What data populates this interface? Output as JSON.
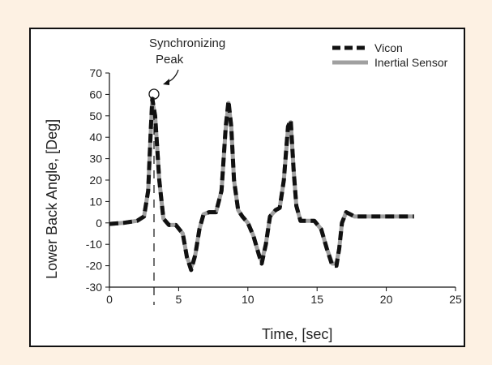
{
  "chart_data": {
    "type": "line",
    "title": "",
    "xlabel": "Time, [sec]",
    "ylabel": "Lower Back  Angle, [Deg]",
    "xlim": [
      0,
      25
    ],
    "ylim": [
      -30,
      70
    ],
    "xticks": [
      0,
      5,
      10,
      15,
      20,
      25
    ],
    "yticks": [
      70,
      60,
      50,
      40,
      30,
      20,
      10,
      0,
      -10,
      -20,
      -30
    ],
    "grid": false,
    "legend_position": "top-right",
    "annotation": {
      "text_line1": "Synchronizing",
      "text_line2": "Peak",
      "x": 3.1,
      "y": 60
    },
    "series": [
      {
        "name": "Vicon",
        "color": "#111111",
        "style": "dashed",
        "x": [
          0,
          1,
          2,
          2.5,
          2.8,
          3.0,
          3.1,
          3.3,
          3.6,
          3.9,
          4.3,
          4.8,
          5.3,
          5.6,
          5.9,
          6.2,
          6.5,
          6.8,
          7.2,
          7.7,
          8.1,
          8.4,
          8.6,
          8.8,
          9.0,
          9.3,
          9.6,
          10.0,
          10.4,
          10.8,
          11.0,
          11.3,
          11.6,
          12.0,
          12.3,
          12.6,
          12.9,
          13.1,
          13.3,
          13.5,
          13.8,
          14.2,
          14.8,
          15.3,
          15.7,
          16.1,
          16.4,
          16.6,
          16.8,
          17.1,
          17.4,
          17.7,
          18.2,
          19.0,
          20.0,
          22.0
        ],
        "y": [
          -0.5,
          0,
          1,
          3,
          15,
          45,
          58,
          50,
          20,
          2,
          -1,
          -1,
          -5,
          -16,
          -22,
          -15,
          -3,
          4,
          5,
          5,
          15,
          45,
          57,
          45,
          20,
          6,
          3,
          0,
          -6,
          -15,
          -19,
          -10,
          3,
          6,
          7,
          20,
          45,
          48,
          25,
          8,
          1,
          1,
          1,
          -3,
          -12,
          -20,
          -20,
          -12,
          0,
          5,
          4,
          3,
          3,
          3,
          3,
          3
        ]
      },
      {
        "name": "Inertial Sensor",
        "color": "#a0a0a0",
        "style": "solid",
        "x": [
          0,
          1,
          2,
          2.5,
          2.8,
          3.0,
          3.1,
          3.3,
          3.6,
          3.9,
          4.3,
          4.8,
          5.3,
          5.6,
          5.9,
          6.2,
          6.5,
          6.8,
          7.2,
          7.7,
          8.1,
          8.4,
          8.6,
          8.8,
          9.0,
          9.3,
          9.6,
          10.0,
          10.4,
          10.8,
          11.0,
          11.3,
          11.6,
          12.0,
          12.3,
          12.6,
          12.9,
          13.1,
          13.3,
          13.5,
          13.8,
          14.2,
          14.8,
          15.3,
          15.7,
          16.1,
          16.4,
          16.6,
          16.8,
          17.1,
          17.4,
          17.7,
          18.2,
          19.0,
          20.0,
          22.0
        ],
        "y": [
          -0.5,
          0,
          1,
          3,
          15,
          44,
          57,
          50,
          20,
          2,
          -1,
          -1,
          -5,
          -16,
          -21,
          -15,
          -3,
          4,
          5,
          5,
          15,
          44,
          56,
          45,
          20,
          6,
          3,
          0,
          -6,
          -15,
          -18,
          -10,
          3,
          6,
          7,
          20,
          44,
          47,
          25,
          8,
          1,
          1,
          1,
          -3,
          -12,
          -19,
          -19,
          -12,
          0,
          5,
          4,
          3,
          3,
          3,
          3,
          3
        ]
      }
    ]
  }
}
